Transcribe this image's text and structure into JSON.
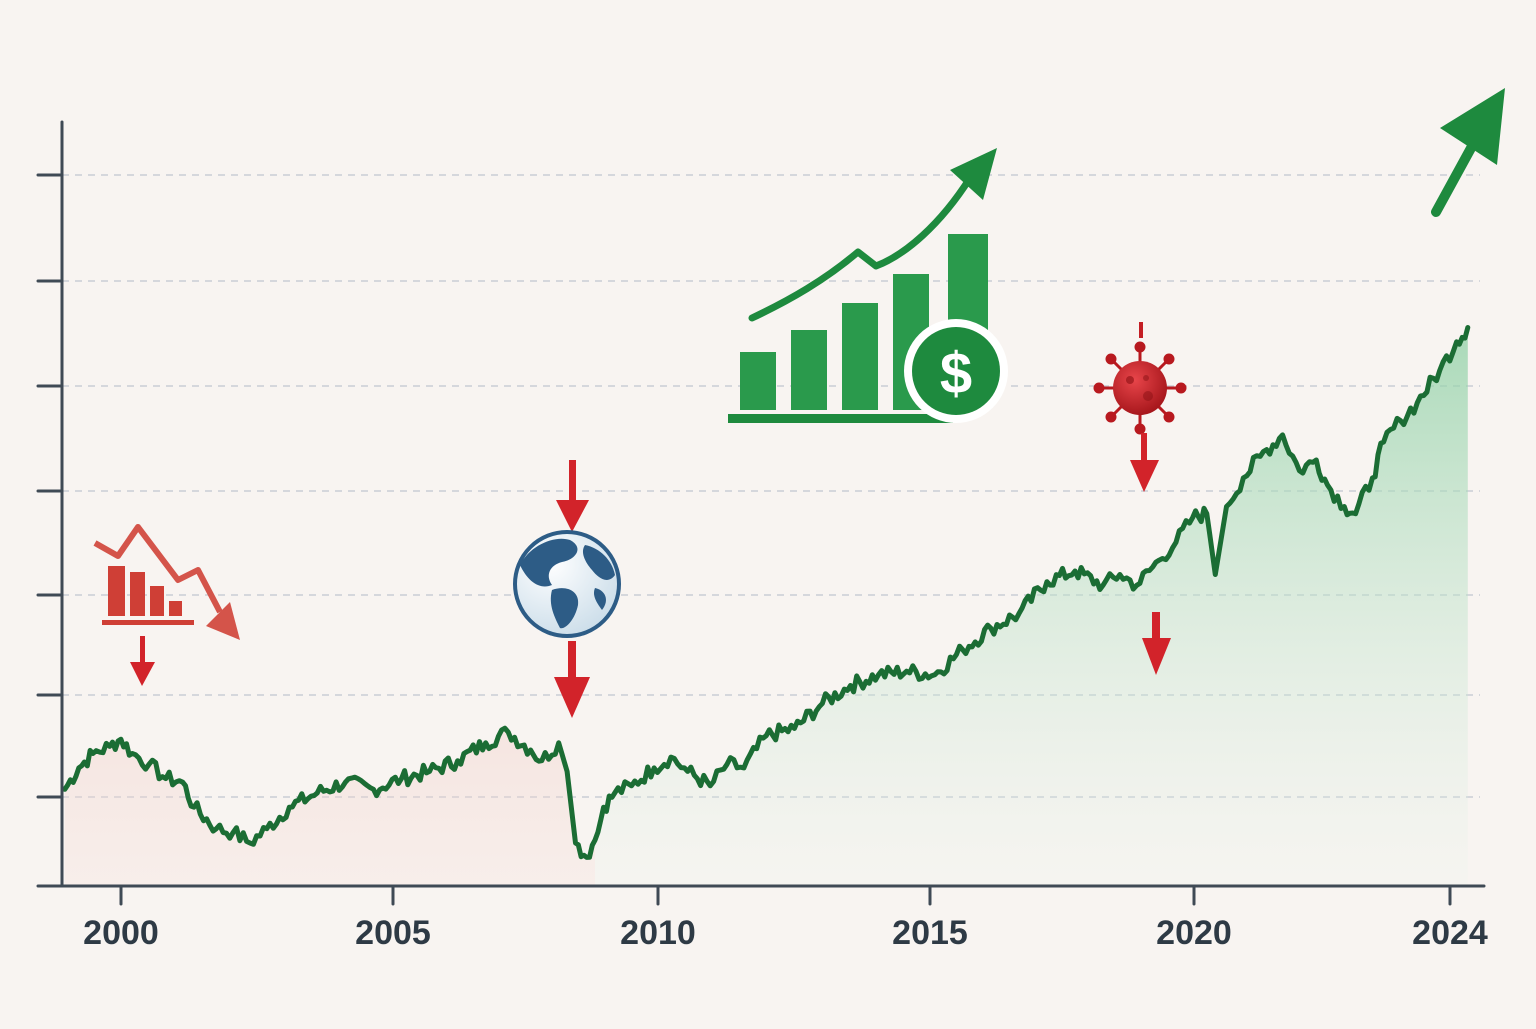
{
  "colors": {
    "background": "#f8f4f1",
    "axis": "#3f4a55",
    "grid": "#c9cdd6",
    "line": "#1b6d34",
    "fill_decline": "#e3a39a",
    "fill_growth": "#8ed0a4",
    "down_arrow": "#d2232a",
    "up_arrow": "#1e8a3e",
    "globe_ocean": "#2d5c86"
  },
  "chart_data": {
    "type": "area",
    "title": "",
    "xlabel": "",
    "ylabel": "",
    "x_ticks": [
      "2000",
      "2005",
      "2010",
      "2015",
      "2020",
      "2024"
    ],
    "xlim": [
      1999.45,
      2024.45
    ],
    "ylim": [
      0,
      100
    ],
    "grid": true,
    "y_ticks_labeled": false,
    "series": [
      {
        "x": [
          1999.5,
          1999.75,
          2000.0,
          2000.3,
          2000.5,
          2000.7,
          2001.0,
          2001.3,
          2001.6,
          2001.8,
          2002.2,
          2002.5,
          2002.8,
          2003.1,
          2003.5,
          2004.0,
          2004.5,
          2005.0,
          2005.5,
          2006.0,
          2006.5,
          2007.0,
          2007.4,
          2007.8,
          2008.0,
          2008.3,
          2008.45,
          2008.6,
          2008.8,
          2009.0,
          2009.1,
          2009.3,
          2009.6,
          2010.0,
          2010.3,
          2010.6,
          2011.0,
          2011.3,
          2011.6,
          2012.0,
          2012.5,
          2013.0,
          2013.5,
          2014.0,
          2014.5,
          2015.0,
          2015.5,
          2016.0,
          2016.5,
          2017.0,
          2017.5,
          2018.0,
          2018.3,
          2018.6,
          2019.0,
          2019.3,
          2019.6,
          2019.85,
          2020.0,
          2020.2,
          2020.5,
          2020.8,
          2021.2,
          2021.5,
          2021.8,
          2022.0,
          2022.3,
          2022.5,
          2022.8,
          2023.0,
          2023.3,
          2023.6,
          2024.0,
          2024.3,
          2024.5
        ],
        "y": [
          13.5,
          16.5,
          18.5,
          19.5,
          20.5,
          18.5,
          17,
          15,
          14.5,
          11,
          8,
          7.5,
          6,
          8,
          11,
          13,
          14.5,
          13.5,
          15,
          16,
          17.5,
          20,
          21.5,
          19,
          17.5,
          20,
          16,
          6,
          4,
          7.5,
          11,
          13,
          14,
          16.5,
          18,
          16,
          14,
          17,
          16.5,
          21,
          22,
          25.5,
          28,
          29.5,
          30,
          29.5,
          33,
          36,
          38,
          42.5,
          44,
          42,
          43.5,
          42,
          45.5,
          48,
          51.5,
          52,
          43.5,
          53,
          57,
          60,
          63,
          58,
          59.5,
          56,
          53,
          52,
          57,
          62,
          65,
          67.5,
          72,
          76,
          78
        ]
      }
    ],
    "annotations": [
      "dotcom-crash",
      "financial-crisis-2008",
      "recovery-growth",
      "covid-crash-2020",
      "continued-growth"
    ]
  }
}
